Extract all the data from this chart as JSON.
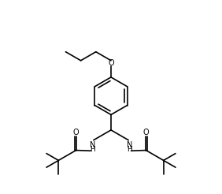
{
  "bg_color": "#ffffff",
  "line_color": "#000000",
  "figsize": [
    2.82,
    2.46
  ],
  "dpi": 100,
  "xlim": [
    0,
    10
  ],
  "ylim": [
    0,
    9
  ]
}
